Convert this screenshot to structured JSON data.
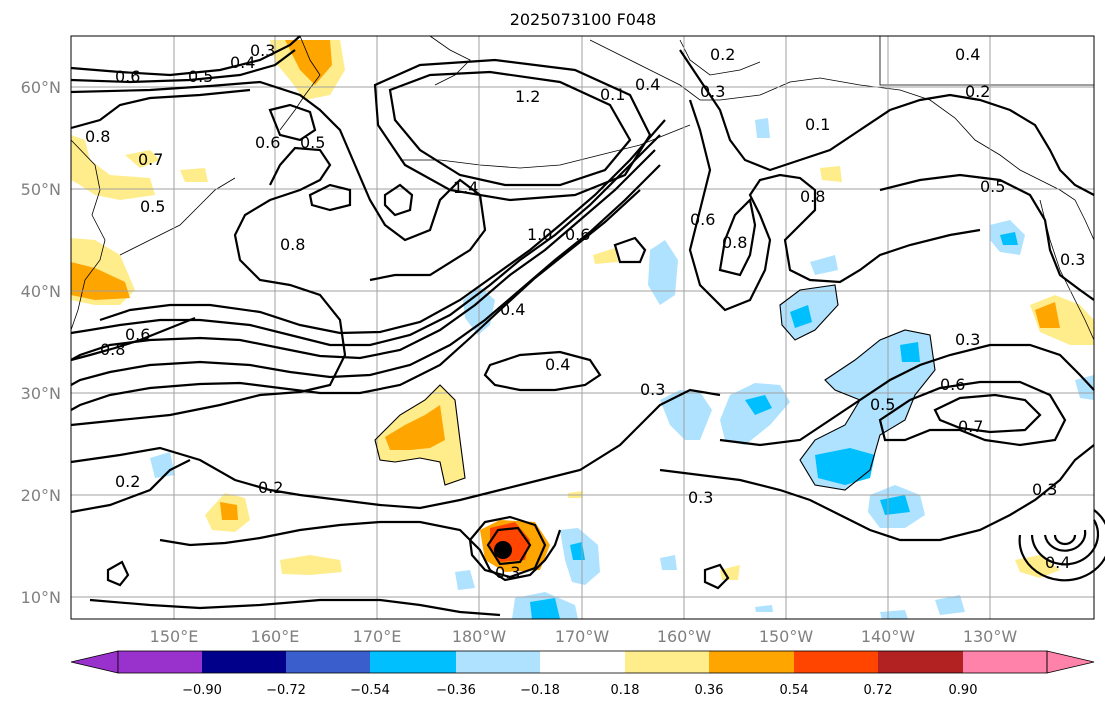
{
  "title": "2025073100 F048",
  "lat_labels": [
    "60°N",
    "50°N",
    "40°N",
    "30°N",
    "20°N",
    "10°N"
  ],
  "lon_labels": [
    "150°E",
    "160°E",
    "170°E",
    "180°W",
    "170°W",
    "160°W",
    "150°W",
    "140°W",
    "130°W"
  ],
  "colorbar": {
    "ticks": [
      "−0.90",
      "−0.72",
      "−0.54",
      "−0.36",
      "−0.18",
      "0.18",
      "0.36",
      "0.54",
      "0.72",
      "0.90"
    ],
    "colors": [
      "#9932cc",
      "#00008b",
      "#3a5fcd",
      "#00bfff",
      "#aee2ff",
      "#ffffff",
      "#ffec8b",
      "#ffa500",
      "#ff4500",
      "#b22222",
      "#ff82ab"
    ]
  },
  "contour_labels": [
    "0.3",
    "0.4",
    "0.5",
    "0.6",
    "0.8",
    "0.7",
    "0.5",
    "0.6",
    "0.5",
    "1.2",
    "1.4",
    "0.1",
    "0.4",
    "0.3",
    "0.2",
    "0.4",
    "0.2",
    "0.1",
    "0.8",
    "0.6",
    "0.8",
    "0.5",
    "0.3",
    "1.0",
    "0.6",
    "0.8",
    "0.4",
    "0.4",
    "0.8",
    "0.6",
    "0.3",
    "0.3",
    "0.6",
    "0.5",
    "0.7",
    "0.2",
    "0.2",
    "0.3",
    "0.3",
    "0.3",
    "0.4"
  ]
}
